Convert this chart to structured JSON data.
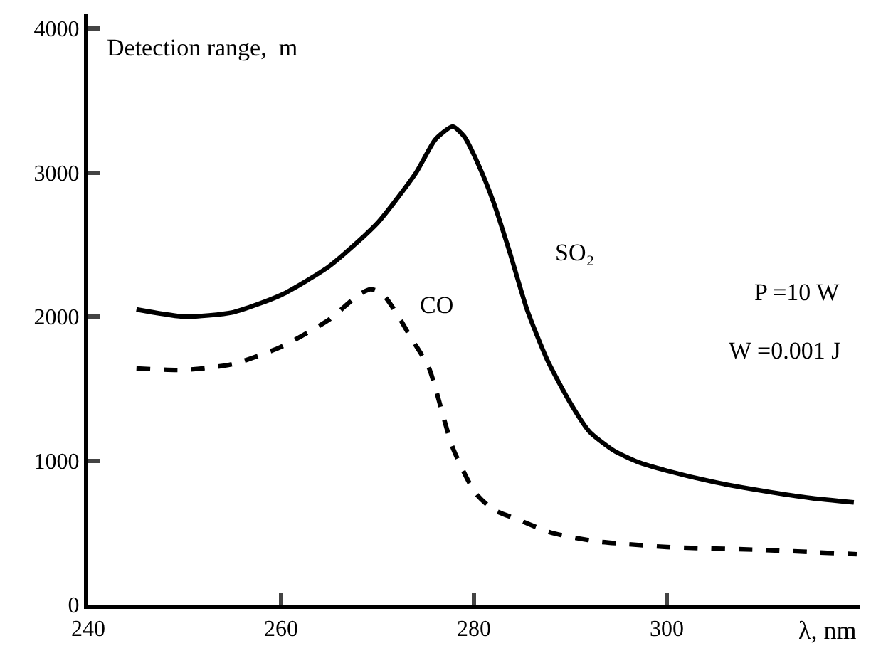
{
  "chart_data": {
    "type": "line",
    "ylabel": "Detection range,  m",
    "xlabel": "λ, nm",
    "xlim": [
      240,
      320
    ],
    "xticks": [
      240,
      260,
      280,
      300
    ],
    "ylim": [
      0,
      4100
    ],
    "yticks": [
      0,
      1000,
      2000,
      3000,
      4000
    ],
    "legend": false,
    "marker": "none",
    "annotations": [
      "P =10 W",
      "W =0.001 J"
    ],
    "series": [
      {
        "name": "SO₂",
        "color": "#000000",
        "line_style": "solid",
        "x": [
          245,
          250,
          255,
          260,
          265,
          270,
          274,
          276,
          277.8,
          279,
          280.5,
          282,
          283.7,
          285.5,
          287.6,
          290,
          292,
          294.5,
          297,
          300,
          305,
          310,
          315,
          319.4
        ],
        "values": [
          2050,
          2000,
          2030,
          2150,
          2350,
          2650,
          3000,
          3230,
          3320,
          3250,
          3050,
          2800,
          2450,
          2050,
          1700,
          1400,
          1200,
          1070,
          990,
          930,
          850,
          790,
          740,
          710
        ]
      },
      {
        "name": "CO",
        "color": "#000000",
        "line_style": "dashed",
        "x": [
          245,
          250,
          255,
          260,
          265,
          268,
          269.3,
          270.5,
          272,
          273.5,
          275.3,
          277.8,
          280.1,
          282,
          284.6,
          288,
          292.6,
          296,
          300,
          310,
          319.7
        ],
        "values": [
          1640,
          1630,
          1670,
          1790,
          1980,
          2150,
          2190,
          2160,
          2020,
          1850,
          1650,
          1090,
          780,
          660,
          590,
          500,
          440,
          420,
          400,
          380,
          350
        ]
      }
    ]
  }
}
